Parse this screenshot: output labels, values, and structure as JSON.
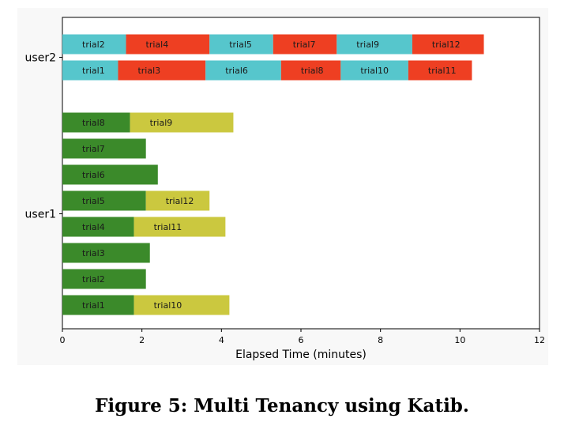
{
  "caption": "Figure 5: Multi Tenancy using Katib.",
  "chart_data": {
    "type": "bar",
    "orientation": "horizontal",
    "subtype": "gantt",
    "xlabel": "Elapsed Time (minutes)",
    "ylabel": "",
    "xlim": [
      0,
      12
    ],
    "xticks": [
      0,
      2,
      4,
      6,
      8,
      10,
      12
    ],
    "grid": false,
    "colors": {
      "user1_first": "#3b8a2a",
      "user1_second": "#cbc83f",
      "user2_cyan": "#56c6cc",
      "user2_red": "#ee3f22"
    },
    "categories": [
      "user2",
      "user1"
    ],
    "lanes": [
      {
        "user": "user2",
        "segments": [
          {
            "label": "trial2",
            "start": 0,
            "end": 1.6,
            "color": "user2_cyan"
          },
          {
            "label": "trial4",
            "start": 1.6,
            "end": 3.7,
            "color": "user2_red"
          },
          {
            "label": "trial5",
            "start": 3.7,
            "end": 5.3,
            "color": "user2_cyan"
          },
          {
            "label": "trial7",
            "start": 5.3,
            "end": 6.9,
            "color": "user2_red"
          },
          {
            "label": "trial9",
            "start": 6.9,
            "end": 8.8,
            "color": "user2_cyan"
          },
          {
            "label": "trial12",
            "start": 8.8,
            "end": 10.6,
            "color": "user2_red"
          }
        ]
      },
      {
        "user": "user2",
        "segments": [
          {
            "label": "trial1",
            "start": 0,
            "end": 1.4,
            "color": "user2_cyan"
          },
          {
            "label": "trial3",
            "start": 1.4,
            "end": 3.6,
            "color": "user2_red"
          },
          {
            "label": "trial6",
            "start": 3.6,
            "end": 5.5,
            "color": "user2_cyan"
          },
          {
            "label": "trial8",
            "start": 5.5,
            "end": 7.0,
            "color": "user2_red"
          },
          {
            "label": "trial10",
            "start": 7.0,
            "end": 8.7,
            "color": "user2_cyan"
          },
          {
            "label": "trial11",
            "start": 8.7,
            "end": 10.3,
            "color": "user2_red"
          }
        ]
      },
      {
        "user": "user1",
        "segments": [
          {
            "label": "trial8",
            "start": 0,
            "end": 1.7,
            "color": "user1_first"
          },
          {
            "label": "trial9",
            "start": 1.7,
            "end": 4.3,
            "color": "user1_second"
          }
        ]
      },
      {
        "user": "user1",
        "segments": [
          {
            "label": "trial7",
            "start": 0,
            "end": 2.1,
            "color": "user1_first"
          }
        ]
      },
      {
        "user": "user1",
        "segments": [
          {
            "label": "trial6",
            "start": 0,
            "end": 2.4,
            "color": "user1_first"
          }
        ]
      },
      {
        "user": "user1",
        "segments": [
          {
            "label": "trial5",
            "start": 0,
            "end": 2.1,
            "color": "user1_first"
          },
          {
            "label": "trial12",
            "start": 2.1,
            "end": 3.7,
            "color": "user1_second"
          }
        ]
      },
      {
        "user": "user1",
        "segments": [
          {
            "label": "trial4",
            "start": 0,
            "end": 1.8,
            "color": "user1_first"
          },
          {
            "label": "trial11",
            "start": 1.8,
            "end": 4.1,
            "color": "user1_second"
          }
        ]
      },
      {
        "user": "user1",
        "segments": [
          {
            "label": "trial3",
            "start": 0,
            "end": 2.2,
            "color": "user1_first"
          }
        ]
      },
      {
        "user": "user1",
        "segments": [
          {
            "label": "trial2",
            "start": 0,
            "end": 2.1,
            "color": "user1_first"
          }
        ]
      },
      {
        "user": "user1",
        "segments": [
          {
            "label": "trial1",
            "start": 0,
            "end": 1.8,
            "color": "user1_first"
          },
          {
            "label": "trial10",
            "start": 1.8,
            "end": 4.2,
            "color": "user1_second"
          }
        ]
      }
    ]
  }
}
